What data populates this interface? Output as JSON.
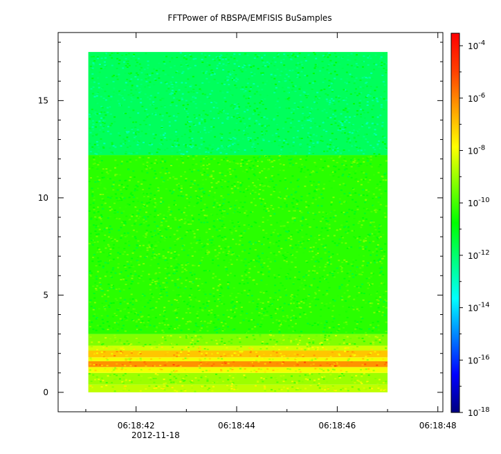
{
  "chart_data": {
    "type": "heatmap",
    "title": "FFTPower of RBSPA/EMFISIS  BuSamples",
    "xlabel": "",
    "ylabel": "",
    "x_ticks": [
      "06:18:42",
      "06:18:44",
      "06:18:46",
      "06:18:48"
    ],
    "x_date_label": "2012-11-18",
    "x_range_seconds": [
      40.45,
      48.1
    ],
    "data_x_range_seconds": [
      41.05,
      47.0
    ],
    "y_ticks": [
      0,
      5,
      10,
      15
    ],
    "ylim": [
      -1.0,
      18.5
    ],
    "data_y_range": [
      0,
      17.5
    ],
    "colorbar": {
      "scale": "log",
      "range": [
        1e-18,
        0.0003
      ],
      "tick_labels": [
        {
          "base": "10",
          "exp": "-4",
          "value": -4
        },
        {
          "base": "10",
          "exp": "-6",
          "value": -6
        },
        {
          "base": "10",
          "exp": "-8",
          "value": -8
        },
        {
          "base": "10",
          "exp": "-10",
          "value": -10
        },
        {
          "base": "10",
          "exp": "-12",
          "value": -12
        },
        {
          "base": "10",
          "exp": "-14",
          "value": -14
        },
        {
          "base": "10",
          "exp": "-16",
          "value": -16
        },
        {
          "base": "10",
          "exp": "-18",
          "value": -18
        }
      ],
      "colormap": [
        "#00007f",
        "#0000ff",
        "#0080ff",
        "#00ffff",
        "#00ff80",
        "#00ff00",
        "#80ff00",
        "#ffff00",
        "#ffa000",
        "#ff4000",
        "#ff0000"
      ]
    },
    "bands": [
      {
        "y_from": 0.0,
        "y_to": 0.4,
        "log_power": -8.6
      },
      {
        "y_from": 0.4,
        "y_to": 1.0,
        "log_power": -9.0
      },
      {
        "y_from": 1.0,
        "y_to": 1.3,
        "log_power": -8.0
      },
      {
        "y_from": 1.3,
        "y_to": 1.6,
        "log_power": -6.2
      },
      {
        "y_from": 1.6,
        "y_to": 1.8,
        "log_power": -8.0
      },
      {
        "y_from": 1.8,
        "y_to": 2.15,
        "log_power": -7.0
      },
      {
        "y_from": 2.15,
        "y_to": 2.4,
        "log_power": -8.4
      },
      {
        "y_from": 2.4,
        "y_to": 3.0,
        "log_power": -9.3
      },
      {
        "y_from": 3.0,
        "y_to": 12.2,
        "log_power": -10.3
      },
      {
        "y_from": 12.2,
        "y_to": 17.5,
        "log_power": -11.8
      }
    ]
  }
}
